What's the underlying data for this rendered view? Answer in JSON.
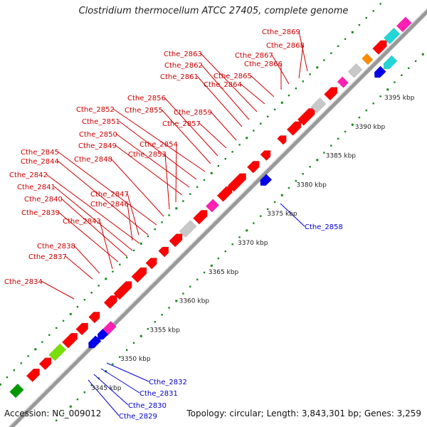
{
  "title": "Clostridium thermocellum ATCC 27405, complete genome",
  "footer": {
    "accession": "Accession: NC_009012",
    "meta": "Topology: circular; Length: 3,843,301 bp; Genes: 3,259"
  },
  "colors": {
    "red": "#ff0000",
    "blue": "#0000ee",
    "magenta": "#ff1fb4",
    "cyan": "#22d6d6",
    "gray": "#c8c8c8",
    "lime": "#77e000",
    "orange": "#ff8c00",
    "pink": "#f08080",
    "green": "#009900",
    "backbone": "#999999"
  },
  "scale": {
    "unit": "kbp",
    "start": 3345,
    "end": 3395,
    "step": 5
  },
  "labels": [
    {
      "text": "Cthe_2869",
      "color": "#cc0000"
    },
    {
      "text": "Cthe_2868",
      "color": "#cc0000"
    },
    {
      "text": "Cthe_2867",
      "color": "#cc0000"
    },
    {
      "text": "Cthe_2866",
      "color": "#cc0000"
    },
    {
      "text": "Cthe_2865",
      "color": "#cc0000"
    },
    {
      "text": "Cthe_2864",
      "color": "#cc0000"
    },
    {
      "text": "Cthe_2863",
      "color": "#cc0000"
    },
    {
      "text": "Cthe_2862",
      "color": "#cc0000"
    },
    {
      "text": "Cthe_2861",
      "color": "#cc0000"
    },
    {
      "text": "Cthe_2859",
      "color": "#cc0000"
    },
    {
      "text": "Cthe_2857",
      "color": "#cc0000"
    },
    {
      "text": "Cthe_2856",
      "color": "#cc0000"
    },
    {
      "text": "Cthe_2855",
      "color": "#cc0000"
    },
    {
      "text": "Cthe_2852",
      "color": "#cc0000"
    },
    {
      "text": "Cthe_2851",
      "color": "#cc0000"
    },
    {
      "text": "Cthe_2850",
      "color": "#cc0000"
    },
    {
      "text": "Cthe_2849",
      "color": "#cc0000"
    },
    {
      "text": "Cthe_2854",
      "color": "#cc0000"
    },
    {
      "text": "Cthe_2853",
      "color": "#cc0000"
    },
    {
      "text": "Cthe_2848",
      "color": "#cc0000"
    },
    {
      "text": "Cthe_2845",
      "color": "#cc0000"
    },
    {
      "text": "Cthe_2844",
      "color": "#cc0000"
    },
    {
      "text": "Cthe_2842",
      "color": "#cc0000"
    },
    {
      "text": "Cthe_2841",
      "color": "#cc0000"
    },
    {
      "text": "Cthe_2840",
      "color": "#cc0000"
    },
    {
      "text": "Cthe_2847",
      "color": "#cc0000"
    },
    {
      "text": "Cthe_2846",
      "color": "#cc0000"
    },
    {
      "text": "Cthe_2839",
      "color": "#cc0000"
    },
    {
      "text": "Cthe_2843",
      "color": "#cc0000"
    },
    {
      "text": "Cthe_2838",
      "color": "#cc0000"
    },
    {
      "text": "Cthe_2837",
      "color": "#cc0000"
    },
    {
      "text": "Cthe_2834",
      "color": "#cc0000"
    },
    {
      "text": "Cthe_2858",
      "color": "#0000cc"
    },
    {
      "text": "Cthe_2832",
      "color": "#0000cc"
    },
    {
      "text": "Cthe_2831",
      "color": "#0000cc"
    },
    {
      "text": "Cthe_2830",
      "color": "#0000cc"
    },
    {
      "text": "Cthe_2829",
      "color": "#0000cc"
    }
  ]
}
